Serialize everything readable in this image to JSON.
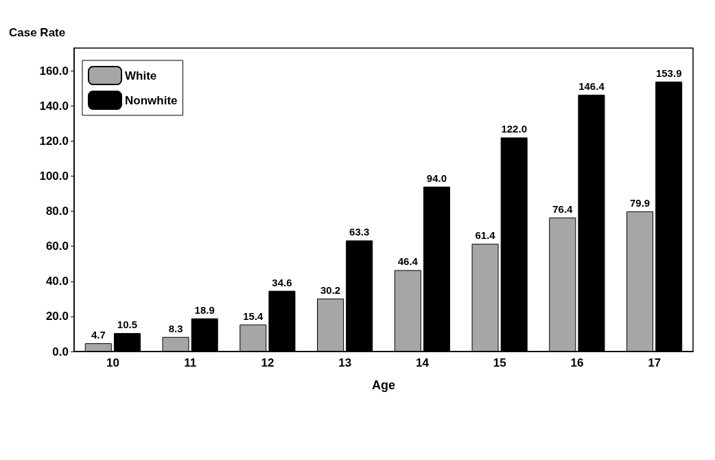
{
  "chart_data": {
    "type": "bar",
    "ylabel": "Case Rate",
    "xlabel": "Age",
    "categories": [
      "10",
      "11",
      "12",
      "13",
      "14",
      "15",
      "16",
      "17"
    ],
    "series": [
      {
        "name": "White",
        "color": "#a6a6a6",
        "values": [
          4.7,
          8.3,
          15.4,
          30.2,
          46.4,
          61.4,
          76.4,
          79.9
        ],
        "value_labels": [
          "4.7",
          "8.3",
          "15.4",
          "30.2",
          "46.4",
          "61.4",
          "76.4",
          "79.9"
        ]
      },
      {
        "name": "Nonwhite",
        "color": "#000000",
        "values": [
          10.5,
          18.9,
          34.6,
          63.3,
          94.0,
          122.0,
          146.4,
          153.9
        ],
        "value_labels": [
          "10.5",
          "18.9",
          "34.6",
          "63.3",
          "94.0",
          "122.0",
          "146.4",
          "153.9"
        ]
      }
    ],
    "ylim": [
      0,
      173
    ],
    "yticks": [
      {
        "value": 0,
        "label": "0.0"
      },
      {
        "value": 20,
        "label": "20.0"
      },
      {
        "value": 40,
        "label": "40.0"
      },
      {
        "value": 60,
        "label": "60.0"
      },
      {
        "value": 80,
        "label": "80.0"
      },
      {
        "value": 100,
        "label": "100.0"
      },
      {
        "value": 120,
        "label": "120.0"
      },
      {
        "value": 140,
        "label": "140.0"
      },
      {
        "value": 160,
        "label": "160.0"
      }
    ],
    "legend": "top left",
    "grid": false
  }
}
